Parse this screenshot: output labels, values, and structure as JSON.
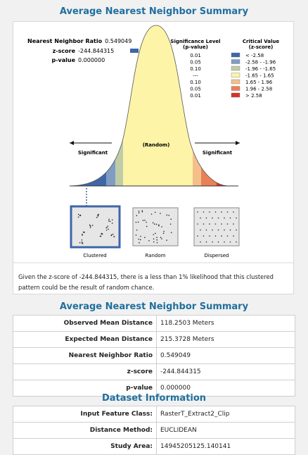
{
  "summary_title": "Average Nearest Neighbor Summary",
  "graph": {
    "stats": {
      "ratio_label": "Nearest Neighbor Ratio",
      "ratio_value": "0.549049",
      "z_label": "z-score",
      "z_value": "-244.844315",
      "p_label": "p-value",
      "p_value": "0.000000"
    },
    "legend": {
      "sig_header_1": "Significance Level",
      "sig_header_2": "(p-value)",
      "crit_header_1": "Critical Value",
      "crit_header_2": "(z-score)",
      "rows": [
        {
          "p": "0.01",
          "z": "< -2.58",
          "color": "#3f66a8"
        },
        {
          "p": "0.05",
          "z": "-2.58 - -1.96",
          "color": "#7f9cc5"
        },
        {
          "p": "0.10",
          "z": "-1.96 - -1.65",
          "color": "#bfcca6"
        },
        {
          "p": "---",
          "z": "-1.65 - 1.65",
          "color": "#fdf4a8"
        },
        {
          "p": "0.10",
          "z": "1.65 - 1.96",
          "color": "#f4c08a"
        },
        {
          "p": "0.05",
          "z": "1.96 - 2.58",
          "color": "#ea8057"
        },
        {
          "p": "0.01",
          "z": "> 2.58",
          "color": "#d63327"
        }
      ]
    },
    "curve_labels": {
      "random": "(Random)",
      "significant_left": "Significant",
      "significant_right": "Significant"
    },
    "patterns": [
      "Clustered",
      "Random",
      "Dispersed"
    ]
  },
  "description": "Given the z-score of -244.844315, there is a less than 1% likelihood that this clustered pattern could be the result of random chance.",
  "summary_table": {
    "title": "Average Nearest Neighbor Summary",
    "rows": [
      {
        "key": "Observed Mean Distance",
        "value": "118.2503 Meters"
      },
      {
        "key": "Expected Mean Distance",
        "value": "215.3728 Meters"
      },
      {
        "key": "Nearest Neighbor Ratio",
        "value": "0.549049"
      },
      {
        "key": "z-score",
        "value": "-244.844315"
      },
      {
        "key": "p-value",
        "value": "0.000000"
      }
    ]
  },
  "dataset": {
    "title": "Dataset Information",
    "rows": [
      {
        "key": "Input Feature Class:",
        "value": "RasterT_Extract2_Clip"
      },
      {
        "key": "Distance Method:",
        "value": "EUCLIDEAN"
      },
      {
        "key": "Study Area:",
        "value": "14945205125.140141"
      }
    ]
  }
}
